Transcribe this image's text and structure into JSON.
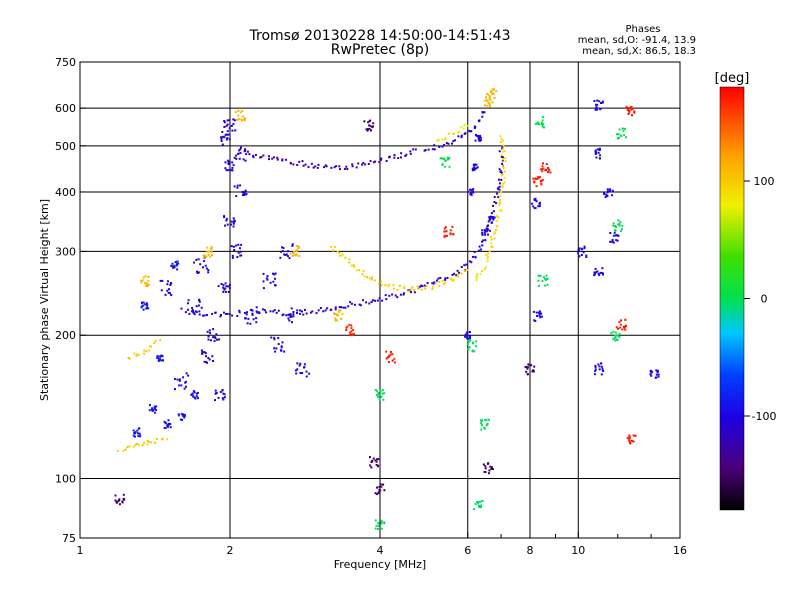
{
  "chart_data": {
    "type": "scatter",
    "title": "Tromsø 20130228 14:50:00-14:51:43",
    "subtitle": "RwPretec (8p)",
    "xlabel": "Frequency [MHz]",
    "ylabel": "Stationary phase Virtual Height [km]",
    "x_scale": "log",
    "y_scale": "log",
    "xlim": [
      1,
      16
    ],
    "ylim": [
      75,
      750
    ],
    "x_ticks": [
      1,
      2,
      4,
      6,
      8,
      10,
      16
    ],
    "y_ticks": [
      75,
      100,
      200,
      300,
      400,
      500,
      600,
      750
    ],
    "grid": true,
    "stats_title": "Phases",
    "stats_lines": [
      "mean, sd,O: -91.4, 13.9",
      "mean, sd,X: 86.5, 18.3"
    ],
    "colorbar": {
      "label": "[deg]",
      "range": [
        -180,
        180
      ],
      "ticks": [
        100,
        0,
        -100
      ]
    },
    "traces": [
      {
        "kind": "scatter",
        "phase": -110,
        "spread": 0.1,
        "points": [
          [
            1.9,
            150
          ],
          [
            1.95,
            250
          ],
          [
            2.0,
            350
          ],
          [
            2.0,
            450
          ],
          [
            1.95,
            520
          ],
          [
            2.05,
            300
          ],
          [
            1.85,
            200
          ],
          [
            2.1,
            400
          ],
          [
            1.8,
            180
          ],
          [
            2.0,
            550
          ],
          [
            2.1,
            480
          ]
        ]
      },
      {
        "kind": "scatter",
        "phase": -105,
        "spread": 0.12,
        "points": [
          [
            1.6,
            160
          ],
          [
            1.7,
            230
          ],
          [
            1.75,
            280
          ],
          [
            2.2,
            220
          ],
          [
            2.4,
            260
          ],
          [
            2.5,
            190
          ],
          [
            2.6,
            300
          ],
          [
            1.5,
            250
          ],
          [
            2.7,
            220
          ],
          [
            2.8,
            170
          ]
        ]
      },
      {
        "kind": "scatter",
        "phase": -90,
        "spread": 0.06,
        "points": [
          [
            1.3,
            125
          ],
          [
            1.4,
            140
          ],
          [
            1.5,
            130
          ],
          [
            1.6,
            135
          ],
          [
            1.7,
            150
          ],
          [
            1.45,
            180
          ],
          [
            1.35,
            230
          ],
          [
            1.55,
            280
          ]
        ]
      },
      {
        "kind": "line",
        "phase": -110,
        "points": [
          [
            1.6,
            225
          ],
          [
            1.9,
            220
          ],
          [
            2.3,
            225
          ],
          [
            2.7,
            222
          ],
          [
            3.0,
            225
          ],
          [
            3.5,
            232
          ],
          [
            4.0,
            238
          ],
          [
            4.5,
            245
          ],
          [
            5.0,
            255
          ],
          [
            5.5,
            265
          ],
          [
            6.0,
            280
          ],
          [
            6.4,
            310
          ],
          [
            6.7,
            350
          ],
          [
            6.9,
            400
          ],
          [
            7.0,
            450
          ],
          [
            7.0,
            500
          ]
        ]
      },
      {
        "kind": "line",
        "phase": -120,
        "points": [
          [
            2.1,
            490
          ],
          [
            2.3,
            475
          ],
          [
            2.6,
            465
          ],
          [
            3.0,
            452
          ],
          [
            3.3,
            450
          ],
          [
            3.7,
            455
          ],
          [
            4.1,
            470
          ],
          [
            4.5,
            480
          ],
          [
            4.8,
            490
          ]
        ]
      },
      {
        "kind": "line",
        "phase": -110,
        "points": [
          [
            4.9,
            490
          ],
          [
            5.3,
            500
          ],
          [
            5.8,
            520
          ],
          [
            6.2,
            540
          ],
          [
            6.5,
            600
          ]
        ]
      },
      {
        "kind": "line",
        "phase": 95,
        "points": [
          [
            3.2,
            310
          ],
          [
            3.4,
            290
          ],
          [
            3.6,
            275
          ],
          [
            3.8,
            265
          ],
          [
            4.1,
            255
          ],
          [
            4.5,
            250
          ],
          [
            5.0,
            252
          ],
          [
            5.5,
            260
          ],
          [
            6.0,
            275
          ]
        ]
      },
      {
        "kind": "line",
        "phase": 90,
        "points": [
          [
            6.2,
            260
          ],
          [
            6.5,
            280
          ],
          [
            6.8,
            330
          ],
          [
            7.0,
            380
          ],
          [
            7.1,
            450
          ],
          [
            7.0,
            530
          ]
        ]
      },
      {
        "kind": "line",
        "phase": 85,
        "points": [
          [
            5.2,
            510
          ],
          [
            5.6,
            530
          ],
          [
            6.0,
            560
          ]
        ]
      },
      {
        "kind": "line",
        "phase": 100,
        "points": [
          [
            1.25,
            180
          ],
          [
            1.35,
            185
          ],
          [
            1.45,
            195
          ]
        ]
      },
      {
        "kind": "line",
        "phase": 100,
        "points": [
          [
            1.2,
            115
          ],
          [
            1.3,
            118
          ],
          [
            1.4,
            120
          ],
          [
            1.5,
            122
          ]
        ]
      },
      {
        "kind": "scatter",
        "phase": 110,
        "spread": 0.08,
        "points": [
          [
            1.35,
            260
          ],
          [
            2.7,
            300
          ],
          [
            3.3,
            220
          ],
          [
            2.1,
            580
          ],
          [
            1.8,
            300
          ],
          [
            6.6,
            620
          ],
          [
            6.7,
            640
          ]
        ]
      },
      {
        "kind": "scatter",
        "phase": -100,
        "spread": 0.05,
        "points": [
          [
            6.0,
            200
          ],
          [
            6.2,
            450
          ],
          [
            6.1,
            400
          ],
          [
            6.3,
            520
          ],
          [
            6.5,
            330
          ],
          [
            6.7,
            350
          ]
        ]
      },
      {
        "kind": "scatter",
        "phase": -100,
        "spread": 0.08,
        "points": [
          [
            11.0,
            610
          ],
          [
            11.0,
            480
          ],
          [
            11.5,
            400
          ],
          [
            10.2,
            300
          ],
          [
            11.0,
            270
          ],
          [
            11.8,
            320
          ],
          [
            14.2,
            165
          ],
          [
            11.0,
            170
          ],
          [
            8.2,
            380
          ],
          [
            8.3,
            220
          ]
        ]
      },
      {
        "kind": "scatter",
        "phase": 0,
        "spread": 0.08,
        "points": [
          [
            12.2,
            530
          ],
          [
            12.0,
            340
          ],
          [
            11.9,
            200
          ],
          [
            5.4,
            460
          ],
          [
            4.0,
            150
          ],
          [
            4.0,
            80
          ],
          [
            6.3,
            88
          ],
          [
            6.5,
            130
          ],
          [
            6.1,
            190
          ],
          [
            8.5,
            260
          ],
          [
            8.4,
            560
          ]
        ]
      },
      {
        "kind": "scatter",
        "phase": 170,
        "spread": 0.08,
        "points": [
          [
            12.7,
            590
          ],
          [
            12.2,
            210
          ],
          [
            12.8,
            120
          ],
          [
            8.3,
            420
          ],
          [
            8.6,
            450
          ],
          [
            5.5,
            330
          ],
          [
            4.2,
            180
          ],
          [
            3.5,
            205
          ]
        ]
      },
      {
        "kind": "scatter",
        "phase": -150,
        "spread": 0.08,
        "points": [
          [
            3.9,
            108
          ],
          [
            6.6,
            105
          ],
          [
            8.0,
            170
          ],
          [
            4.0,
            95
          ],
          [
            3.8,
            550
          ],
          [
            1.2,
            90
          ]
        ]
      }
    ]
  }
}
